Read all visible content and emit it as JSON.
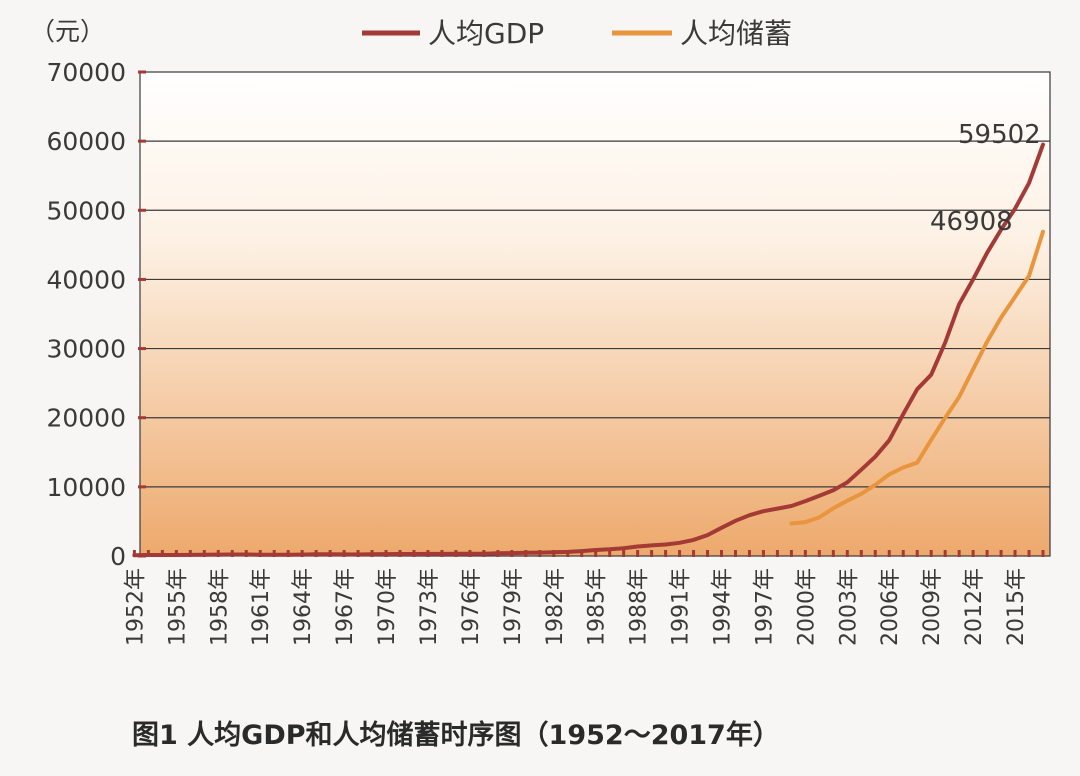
{
  "chart_data": {
    "type": "line",
    "title": "图1  人均GDP和人均储蓄时序图（1952～2017年）",
    "y_unit_label": "（元）",
    "ylim": [
      0,
      70000
    ],
    "y_ticks": [
      "0",
      "10000",
      "20000",
      "30000",
      "40000",
      "50000",
      "60000",
      "70000"
    ],
    "x_tick_labels": [
      "1952年",
      "1955年",
      "1958年",
      "1961年",
      "1964年",
      "1967年",
      "1970年",
      "1973年",
      "1976年",
      "1979年",
      "1982年",
      "1985年",
      "1988年",
      "1991年",
      "1994年",
      "1997年",
      "2000年",
      "2003年",
      "2006年",
      "2009年",
      "2012年",
      "2015年"
    ],
    "x_range": [
      1952,
      2017
    ],
    "grid": true,
    "legend_position": "top",
    "annotations": [
      "59502",
      "46908"
    ],
    "series": [
      {
        "name": "人均GDP",
        "color": "#a33a35",
        "points": [
          [
            1952,
            119
          ],
          [
            1953,
            142
          ],
          [
            1954,
            144
          ],
          [
            1955,
            150
          ],
          [
            1956,
            166
          ],
          [
            1957,
            168
          ],
          [
            1958,
            200
          ],
          [
            1959,
            216
          ],
          [
            1960,
            218
          ],
          [
            1961,
            185
          ],
          [
            1962,
            173
          ],
          [
            1963,
            181
          ],
          [
            1964,
            208
          ],
          [
            1965,
            240
          ],
          [
            1966,
            254
          ],
          [
            1967,
            235
          ],
          [
            1968,
            222
          ],
          [
            1969,
            243
          ],
          [
            1970,
            275
          ],
          [
            1971,
            288
          ],
          [
            1972,
            292
          ],
          [
            1973,
            309
          ],
          [
            1974,
            310
          ],
          [
            1975,
            324
          ],
          [
            1976,
            316
          ],
          [
            1977,
            339
          ],
          [
            1978,
            385
          ],
          [
            1979,
            423
          ],
          [
            1980,
            468
          ],
          [
            1981,
            497
          ],
          [
            1982,
            533
          ],
          [
            1983,
            588
          ],
          [
            1984,
            702
          ],
          [
            1985,
            866
          ],
          [
            1986,
            973
          ],
          [
            1987,
            1123
          ],
          [
            1988,
            1378
          ],
          [
            1989,
            1536
          ],
          [
            1990,
            1663
          ],
          [
            1991,
            1912
          ],
          [
            1992,
            2334
          ],
          [
            1993,
            3027
          ],
          [
            1994,
            4081
          ],
          [
            1995,
            5091
          ],
          [
            1996,
            5898
          ],
          [
            1997,
            6481
          ],
          [
            1998,
            6860
          ],
          [
            1999,
            7229
          ],
          [
            2000,
            7942
          ],
          [
            2001,
            8717
          ],
          [
            2002,
            9506
          ],
          [
            2003,
            10666
          ],
          [
            2004,
            12487
          ],
          [
            2005,
            14368
          ],
          [
            2006,
            16738
          ],
          [
            2007,
            20505
          ],
          [
            2008,
            24121
          ],
          [
            2009,
            26222
          ],
          [
            2010,
            30876
          ],
          [
            2011,
            36403
          ],
          [
            2012,
            40007
          ],
          [
            2013,
            43852
          ],
          [
            2014,
            47203
          ],
          [
            2015,
            50251
          ],
          [
            2016,
            53935
          ],
          [
            2017,
            59502
          ]
        ]
      },
      {
        "name": "人均储蓄",
        "color": "#e8953e",
        "points": [
          [
            1999,
            4700
          ],
          [
            2000,
            4900
          ],
          [
            2001,
            5600
          ],
          [
            2002,
            6900
          ],
          [
            2003,
            8000
          ],
          [
            2004,
            9000
          ],
          [
            2005,
            10300
          ],
          [
            2006,
            11800
          ],
          [
            2007,
            12800
          ],
          [
            2008,
            13500
          ],
          [
            2009,
            16800
          ],
          [
            2010,
            20000
          ],
          [
            2011,
            23000
          ],
          [
            2012,
            27000
          ],
          [
            2013,
            31000
          ],
          [
            2014,
            34500
          ],
          [
            2015,
            37500
          ],
          [
            2016,
            40500
          ],
          [
            2017,
            46908
          ]
        ]
      }
    ]
  }
}
